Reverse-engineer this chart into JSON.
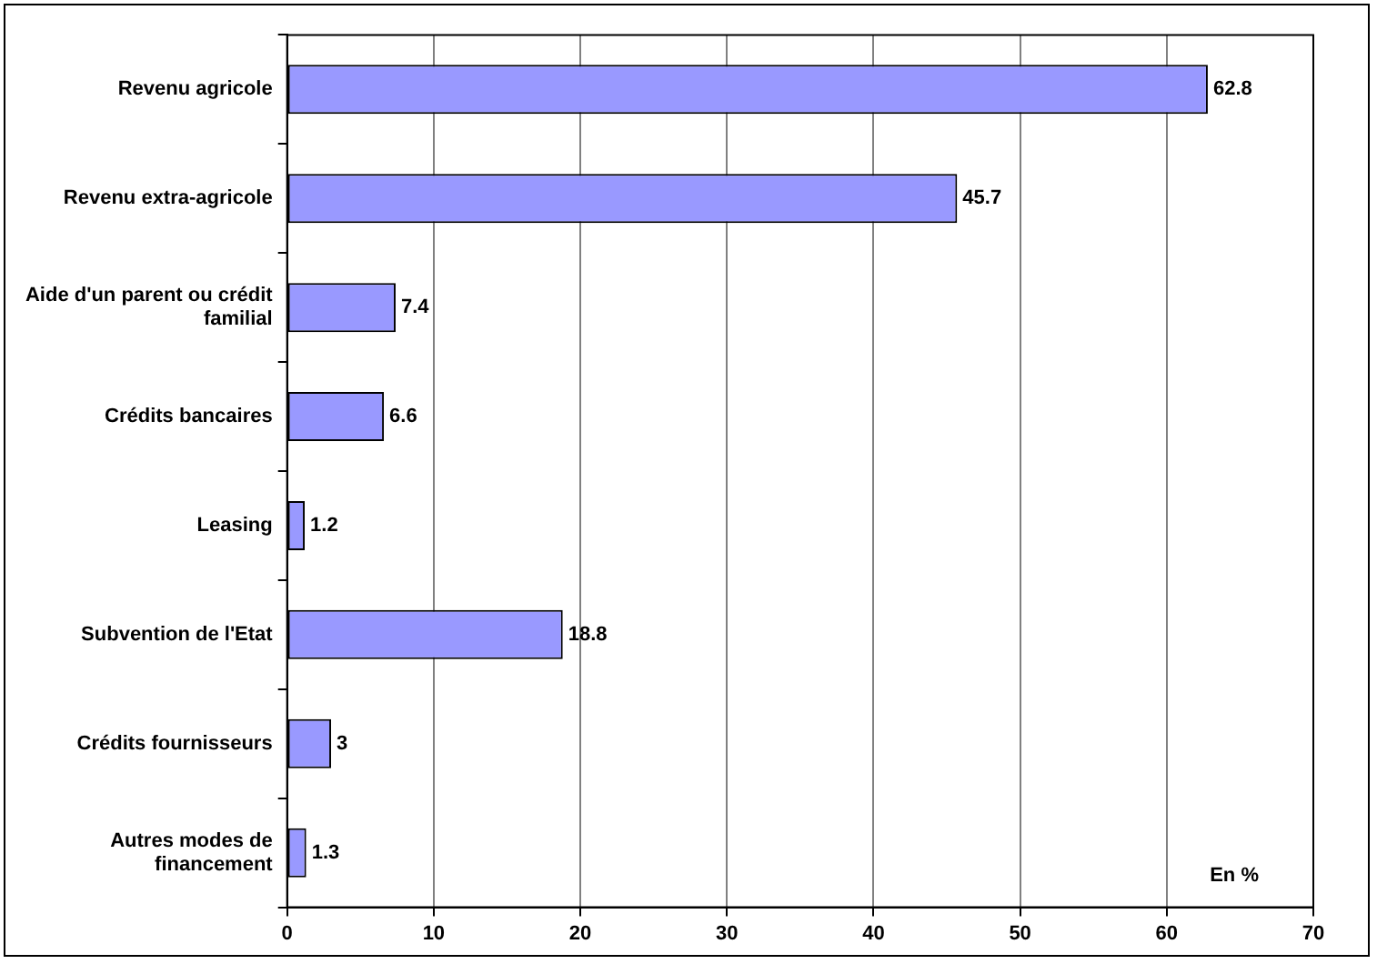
{
  "chart_data": {
    "type": "bar",
    "orientation": "horizontal",
    "categories": [
      "Revenu agricole",
      "Revenu extra-agricole",
      "Aide d'un parent ou crédit familial",
      "Crédits bancaires",
      "Leasing",
      "Subvention de l'Etat",
      "Crédits fournisseurs",
      "Autres modes de financement"
    ],
    "values": [
      62.8,
      45.7,
      7.4,
      6.6,
      1.2,
      18.8,
      3,
      1.3
    ],
    "color": "#9999ff",
    "xlim": [
      0,
      70
    ],
    "xticks": [
      0,
      10,
      20,
      30,
      40,
      50,
      60,
      70
    ],
    "grid": "x",
    "legend": false,
    "data_labels": true,
    "annotations": [
      "En %"
    ]
  }
}
